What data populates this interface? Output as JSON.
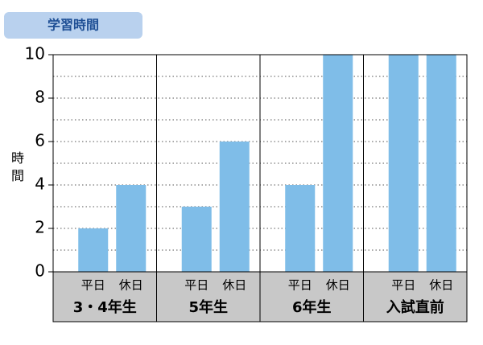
{
  "chart_data": {
    "type": "bar",
    "title": "学習時間",
    "y_label": "時間",
    "categories": [
      "3・4年生",
      "5年生",
      "6年生",
      "入試直前"
    ],
    "series": [
      {
        "name": "平日",
        "color": "#7fbde8",
        "values": [
          2,
          3,
          4,
          10
        ]
      },
      {
        "name": "休日",
        "color": "#7fbde8",
        "values": [
          4,
          6,
          10,
          10
        ]
      }
    ],
    "ylim": [
      0,
      10
    ],
    "yticks": [
      0,
      2,
      4,
      6,
      8,
      10
    ],
    "grid_yticks": [
      1,
      2,
      3,
      4,
      5,
      6,
      7,
      8,
      9
    ],
    "grid": true
  }
}
